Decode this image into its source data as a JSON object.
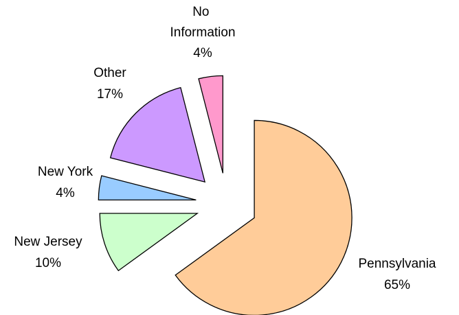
{
  "chart_data": {
    "type": "pie",
    "categories": [
      "Pennsylvania",
      "New Jersey",
      "New York",
      "Other",
      "No Information"
    ],
    "values": [
      65,
      10,
      4,
      17,
      4
    ],
    "value_labels": [
      "65%",
      "10%",
      "4%",
      "17%",
      "4%"
    ],
    "colors": [
      "#ffcc99",
      "#ccffcc",
      "#99ccff",
      "#cc99ff",
      "#ff99cc"
    ],
    "exploded": true
  }
}
